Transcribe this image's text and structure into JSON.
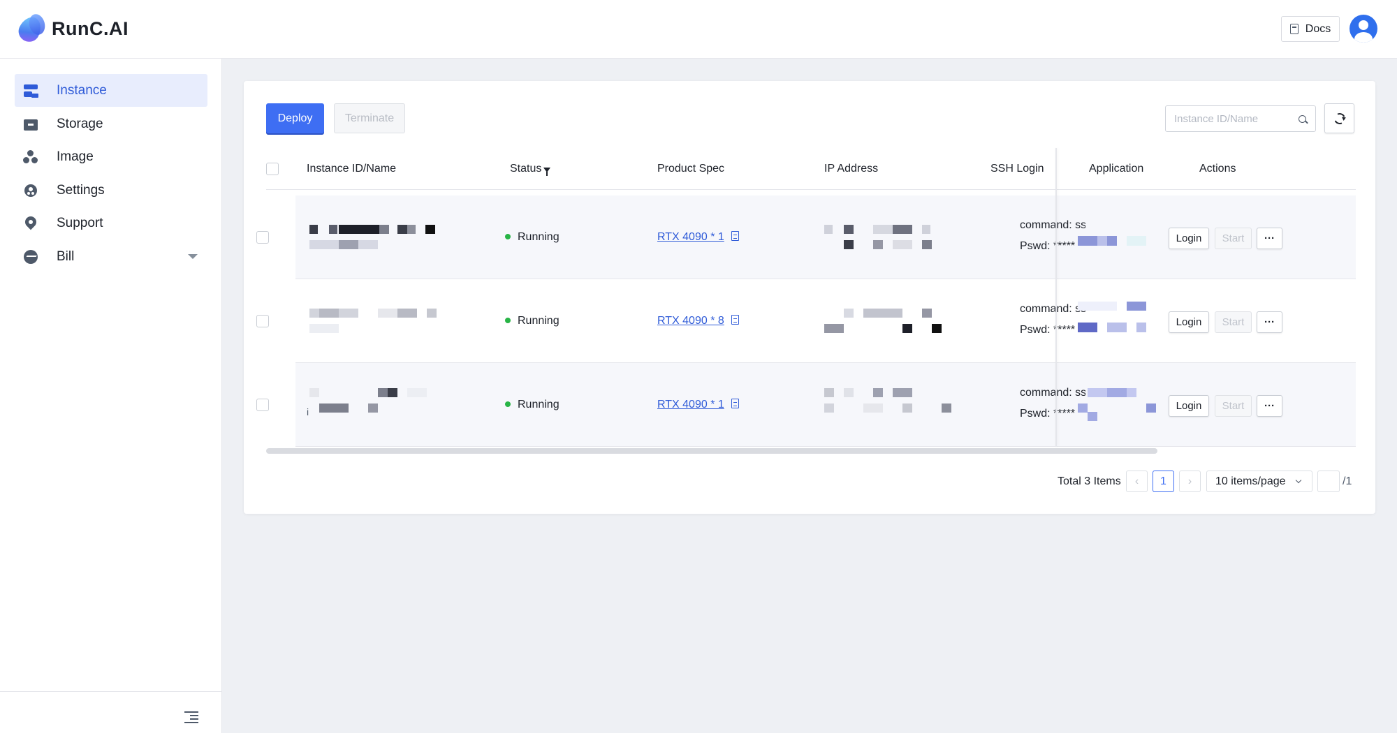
{
  "app": {
    "name": "RunC.AI"
  },
  "header": {
    "docs_label": "Docs"
  },
  "sidebar": {
    "items": [
      {
        "label": "Instance",
        "icon": "instance-icon",
        "active": true
      },
      {
        "label": "Storage",
        "icon": "storage-icon"
      },
      {
        "label": "Image",
        "icon": "image-icon"
      },
      {
        "label": "Settings",
        "icon": "settings-icon"
      },
      {
        "label": "Support",
        "icon": "support-icon"
      },
      {
        "label": "Bill",
        "icon": "bill-icon",
        "has_submenu": true
      }
    ]
  },
  "toolbar": {
    "deploy_label": "Deploy",
    "terminate_label": "Terminate",
    "search_placeholder": "Instance ID/Name"
  },
  "table": {
    "columns": [
      "Instance ID/Name",
      "Status",
      "Product Spec",
      "IP Address",
      "SSH Login",
      "Application",
      "Actions"
    ],
    "rows": [
      {
        "status": "Running",
        "spec": "RTX 4090 * 1",
        "ssh_command": "command:  ssh",
        "ssh_pswd": "Pswd:  *****"
      },
      {
        "status": "Running",
        "spec": "RTX 4090 * 8",
        "ssh_command": "command:  ssh",
        "ssh_pswd": "Pswd:  *****"
      },
      {
        "status": "Running",
        "spec": "RTX 4090 * 1",
        "ssh_command": "command:  ssh",
        "ssh_pswd": "Pswd:  *****",
        "name_prefix": "i"
      }
    ],
    "actions": {
      "login": "Login",
      "start": "Start",
      "more": "···"
    }
  },
  "pagination": {
    "total": "Total 3 Items",
    "prev": "‹",
    "current": "1",
    "next": "›",
    "page_size": "10 items/page",
    "of": "/1"
  },
  "colors": {
    "accent": "#3e6ef3",
    "running": "#28b446",
    "link": "#2f5bd8"
  }
}
